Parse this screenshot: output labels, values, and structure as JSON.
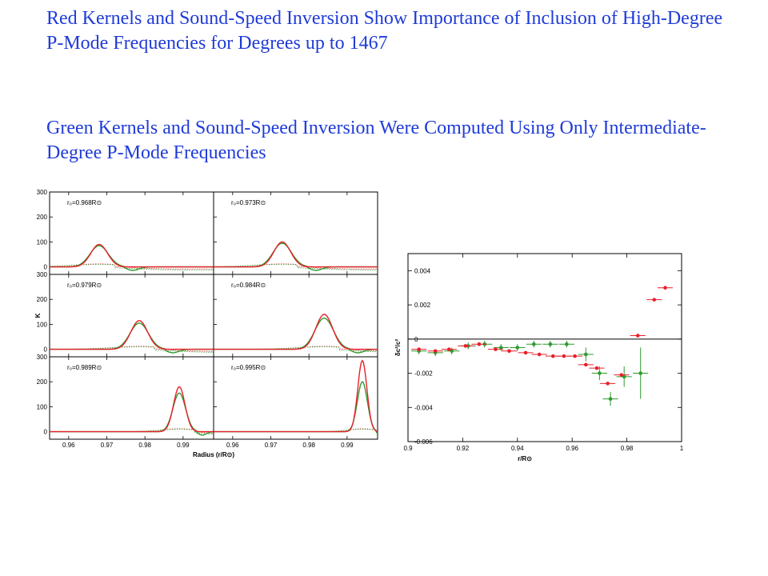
{
  "headings": {
    "red": "Red  Kernels and Sound-Speed Inversion Show Importance of Inclusion of High-Degree P-Mode Frequencies for Degrees up to 1467",
    "green": "Green Kernels and Sound-Speed Inversion Were Computed Using Only Intermediate-Degree P-Mode Frequencies"
  },
  "colors": {
    "heading": "#1f3bd8",
    "high_degree": "#e8202a",
    "intermediate_degree": "#2e9a2e"
  },
  "chart_data": [
    {
      "type": "line",
      "layout": "3x2 panel grid",
      "xlabel": "Radius (r/R⊙)",
      "ylabel": "K",
      "xlim": [
        0.955,
        0.998
      ],
      "ylim": [
        -30,
        300
      ],
      "x_ticks": [
        "0.96",
        "0.97",
        "0.98",
        "0.99"
      ],
      "y_ticks": [
        "0",
        "100",
        "200",
        "300"
      ],
      "panels": [
        {
          "label": "r₀=0.968R⊙",
          "center": 0.968,
          "red_peak": 90,
          "green_peak": 85
        },
        {
          "label": "r₀=0.973R⊙",
          "center": 0.973,
          "red_peak": 100,
          "green_peak": 95
        },
        {
          "label": "r₀=0.979R⊙",
          "center": 0.9785,
          "red_peak": 115,
          "green_peak": 105
        },
        {
          "label": "r₀=0.984R⊙",
          "center": 0.984,
          "red_peak": 140,
          "green_peak": 125
        },
        {
          "label": "r₀=0.989R⊙",
          "center": 0.989,
          "red_peak": 180,
          "green_peak": 155
        },
        {
          "label": "r₀=0.995R⊙",
          "center": 0.994,
          "red_peak": 285,
          "green_peak": 200
        }
      ],
      "series_colors": [
        "#e8202a",
        "#2e9a2e"
      ]
    },
    {
      "type": "scatter",
      "xlabel": "r/R⊙",
      "ylabel": "δc²/c²",
      "xlim": [
        0.9,
        1.0
      ],
      "ylim": [
        -0.006,
        0.005
      ],
      "x_ticks": [
        "0.9",
        "0.92",
        "0.94",
        "0.96",
        "0.98",
        "1"
      ],
      "y_ticks": [
        "0.004",
        "0.002",
        "0",
        "-0.002",
        "-0.004",
        "-0.006"
      ],
      "zero_line": true,
      "series": [
        {
          "color": "#e8202a",
          "points": [
            {
              "x": 0.904,
              "y": -0.0006
            },
            {
              "x": 0.91,
              "y": -0.0007
            },
            {
              "x": 0.915,
              "y": -0.0006
            },
            {
              "x": 0.921,
              "y": -0.0004
            },
            {
              "x": 0.926,
              "y": -0.0003
            },
            {
              "x": 0.932,
              "y": -0.0006
            },
            {
              "x": 0.937,
              "y": -0.0007
            },
            {
              "x": 0.943,
              "y": -0.0008
            },
            {
              "x": 0.948,
              "y": -0.0009
            },
            {
              "x": 0.953,
              "y": -0.001
            },
            {
              "x": 0.957,
              "y": -0.001
            },
            {
              "x": 0.961,
              "y": -0.001
            },
            {
              "x": 0.965,
              "y": -0.0015
            },
            {
              "x": 0.969,
              "y": -0.0017
            },
            {
              "x": 0.973,
              "y": -0.0026
            },
            {
              "x": 0.978,
              "y": -0.0021
            },
            {
              "x": 0.984,
              "y": 0.0002
            },
            {
              "x": 0.99,
              "y": 0.0023
            },
            {
              "x": 0.994,
              "y": 0.003
            }
          ]
        },
        {
          "color": "#2e9a2e",
          "points": [
            {
              "x": 0.904,
              "y": -0.0007,
              "ey": 0.0002
            },
            {
              "x": 0.91,
              "y": -0.0008,
              "ey": 0.0002
            },
            {
              "x": 0.916,
              "y": -0.0007,
              "ey": 0.0002
            },
            {
              "x": 0.922,
              "y": -0.0004,
              "ey": 0.0002
            },
            {
              "x": 0.928,
              "y": -0.0003,
              "ey": 0.0002
            },
            {
              "x": 0.934,
              "y": -0.0005,
              "ey": 0.0002
            },
            {
              "x": 0.94,
              "y": -0.0005,
              "ey": 0.0002
            },
            {
              "x": 0.946,
              "y": -0.0003,
              "ey": 0.0002
            },
            {
              "x": 0.952,
              "y": -0.0003,
              "ey": 0.0002
            },
            {
              "x": 0.958,
              "y": -0.0003,
              "ey": 0.0002
            },
            {
              "x": 0.965,
              "y": -0.0009,
              "ey": 0.0004
            },
            {
              "x": 0.97,
              "y": -0.002,
              "ey": 0.0004
            },
            {
              "x": 0.974,
              "y": -0.0035,
              "ey": 0.0004
            },
            {
              "x": 0.979,
              "y": -0.0022,
              "ey": 0.0006
            },
            {
              "x": 0.985,
              "y": -0.002,
              "ey": 0.0015
            }
          ]
        }
      ]
    }
  ]
}
